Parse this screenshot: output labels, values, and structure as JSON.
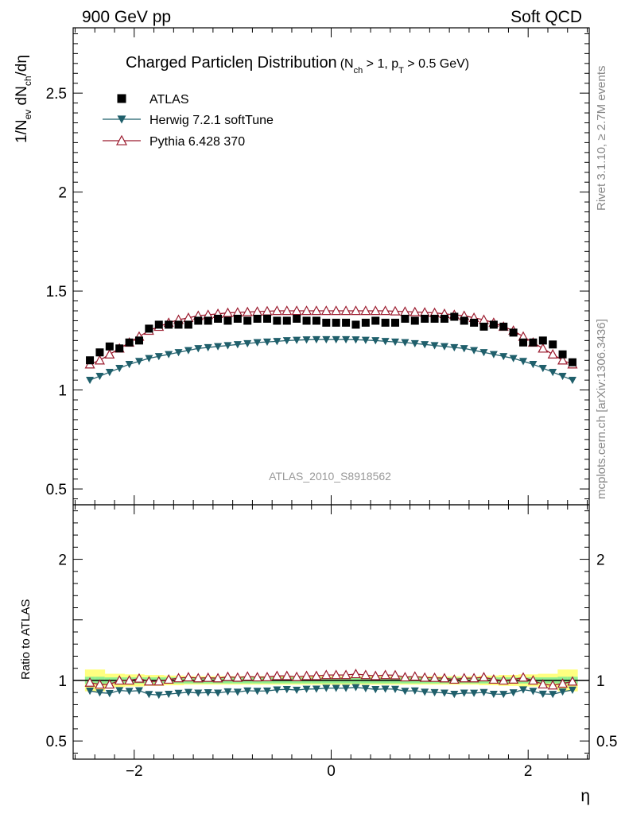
{
  "header": {
    "left": "900 GeV pp",
    "right": "Soft QCD"
  },
  "side_labels": {
    "rivet": "Rivet 3.1.10, ≥ 2.7M events",
    "mcplots": "mcplots.cern.ch [arXiv:1306.3436]"
  },
  "colors": {
    "atlas": "#000000",
    "herwig": "#1f5f6b",
    "pythia": "#9b1b2e",
    "band_inner": "#90ee90",
    "band_outer": "#ffff80"
  },
  "chart_data": {
    "type": "scatter",
    "title": "Charged Particleη Distribution",
    "title_cond_prefix": "(N",
    "title_cond_sub1": "ch",
    "title_cond_mid": " > 1, p",
    "title_cond_sub2": "T",
    "title_cond_suffix": " > 0.5 GeV)",
    "ylabel_main": {
      "a": "1/N",
      "sub1": "ev",
      "b": " dN",
      "sub2": "ch",
      "c": "/dη"
    },
    "ylabel_ratio": "Ratio to ATLAS",
    "xlabel": "η",
    "analysis_id": "ATLAS_2010_S8918562",
    "xlim": [
      -2.62,
      2.62
    ],
    "ylim_main": [
      0.42,
      2.83
    ],
    "ylim_ratio": [
      0.35,
      2.45
    ],
    "xticks": [
      -2,
      0,
      2
    ],
    "xtick_labels": [
      "−2",
      "0",
      "2"
    ],
    "yticks_main": [
      0.5,
      1,
      1.5,
      2,
      2.5
    ],
    "yticks_main_labels": [
      "0.5",
      "1",
      "1.5",
      "2",
      "2.5"
    ],
    "yticks_ratio": [
      0.5,
      1,
      2
    ],
    "yticks_ratio_labels": [
      "0.5",
      "1",
      "2"
    ],
    "legend": [
      {
        "name": "ATLAS",
        "marker": "square"
      },
      {
        "name": "Herwig 7.2.1 softTune",
        "marker": "triangle-down"
      },
      {
        "name": "Pythia 6.428 370",
        "marker": "triangle-up-open"
      }
    ],
    "x": [
      -2.45,
      -2.35,
      -2.25,
      -2.15,
      -2.05,
      -1.95,
      -1.85,
      -1.75,
      -1.65,
      -1.55,
      -1.45,
      -1.35,
      -1.25,
      -1.15,
      -1.05,
      -0.95,
      -0.85,
      -0.75,
      -0.65,
      -0.55,
      -0.45,
      -0.35,
      -0.25,
      -0.15,
      -0.05,
      0.05,
      0.15,
      0.25,
      0.35,
      0.45,
      0.55,
      0.65,
      0.75,
      0.85,
      0.95,
      1.05,
      1.15,
      1.25,
      1.35,
      1.45,
      1.55,
      1.65,
      1.75,
      1.85,
      1.95,
      2.05,
      2.15,
      2.25,
      2.35,
      2.45
    ],
    "series": [
      {
        "name": "ATLAS",
        "values": [
          1.15,
          1.19,
          1.22,
          1.21,
          1.24,
          1.25,
          1.31,
          1.33,
          1.33,
          1.33,
          1.33,
          1.35,
          1.35,
          1.36,
          1.35,
          1.36,
          1.35,
          1.36,
          1.36,
          1.35,
          1.35,
          1.36,
          1.35,
          1.35,
          1.34,
          1.34,
          1.34,
          1.33,
          1.34,
          1.35,
          1.34,
          1.34,
          1.36,
          1.35,
          1.36,
          1.36,
          1.36,
          1.37,
          1.35,
          1.34,
          1.32,
          1.33,
          1.32,
          1.29,
          1.24,
          1.24,
          1.25,
          1.23,
          1.18,
          1.14
        ]
      },
      {
        "name": "Herwig 7.2.1 softTune",
        "values": [
          1.05,
          1.07,
          1.09,
          1.11,
          1.13,
          1.145,
          1.16,
          1.17,
          1.18,
          1.19,
          1.2,
          1.21,
          1.215,
          1.22,
          1.225,
          1.23,
          1.235,
          1.24,
          1.243,
          1.246,
          1.25,
          1.252,
          1.254,
          1.255,
          1.255,
          1.255,
          1.255,
          1.254,
          1.252,
          1.25,
          1.246,
          1.243,
          1.24,
          1.235,
          1.23,
          1.225,
          1.22,
          1.215,
          1.21,
          1.2,
          1.19,
          1.18,
          1.17,
          1.16,
          1.145,
          1.13,
          1.11,
          1.09,
          1.07,
          1.05
        ]
      },
      {
        "name": "Pythia 6.428 370",
        "values": [
          1.13,
          1.15,
          1.18,
          1.21,
          1.24,
          1.27,
          1.3,
          1.32,
          1.34,
          1.355,
          1.365,
          1.375,
          1.38,
          1.385,
          1.39,
          1.392,
          1.394,
          1.396,
          1.398,
          1.4,
          1.4,
          1.4,
          1.4,
          1.4,
          1.4,
          1.4,
          1.4,
          1.4,
          1.4,
          1.4,
          1.4,
          1.398,
          1.396,
          1.394,
          1.392,
          1.39,
          1.385,
          1.38,
          1.375,
          1.365,
          1.355,
          1.34,
          1.32,
          1.3,
          1.27,
          1.24,
          1.21,
          1.18,
          1.15,
          1.13
        ]
      }
    ],
    "ratio_band_inner": [
      0.03,
      0.03,
      0.025,
      0.025,
      0.025,
      0.025,
      0.025,
      0.025,
      0.025,
      0.025,
      0.025,
      0.025,
      0.025,
      0.025,
      0.025,
      0.025,
      0.025,
      0.025,
      0.025,
      0.025,
      0.025,
      0.025,
      0.025,
      0.025,
      0.025,
      0.025,
      0.025,
      0.025,
      0.025,
      0.025,
      0.025,
      0.025,
      0.025,
      0.025,
      0.025,
      0.025,
      0.025,
      0.025,
      0.025,
      0.025,
      0.025,
      0.025,
      0.025,
      0.025,
      0.025,
      0.025,
      0.025,
      0.025,
      0.03,
      0.03
    ],
    "ratio_band_outer": [
      0.09,
      0.09,
      0.055,
      0.055,
      0.05,
      0.05,
      0.045,
      0.045,
      0.04,
      0.04,
      0.035,
      0.035,
      0.035,
      0.035,
      0.035,
      0.035,
      0.035,
      0.035,
      0.035,
      0.035,
      0.035,
      0.035,
      0.035,
      0.035,
      0.035,
      0.035,
      0.035,
      0.035,
      0.035,
      0.035,
      0.035,
      0.035,
      0.035,
      0.035,
      0.035,
      0.035,
      0.035,
      0.035,
      0.035,
      0.035,
      0.04,
      0.04,
      0.045,
      0.045,
      0.05,
      0.05,
      0.055,
      0.055,
      0.09,
      0.09
    ]
  }
}
